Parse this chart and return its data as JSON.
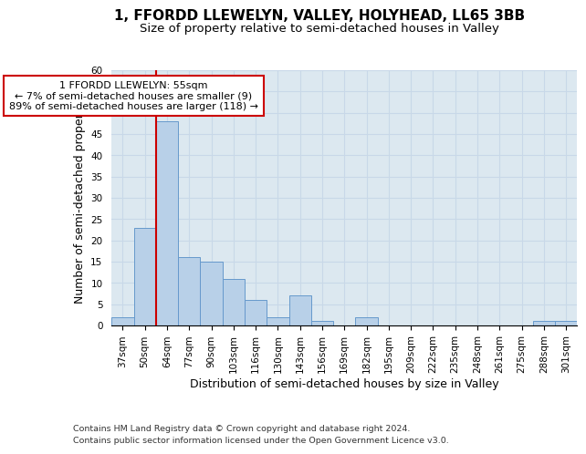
{
  "title1": "1, FFORDD LLEWELYN, VALLEY, HOLYHEAD, LL65 3BB",
  "title2": "Size of property relative to semi-detached houses in Valley",
  "xlabel": "Distribution of semi-detached houses by size in Valley",
  "ylabel": "Number of semi-detached properties",
  "categories": [
    "37sqm",
    "50sqm",
    "64sqm",
    "77sqm",
    "90sqm",
    "103sqm",
    "116sqm",
    "130sqm",
    "143sqm",
    "156sqm",
    "169sqm",
    "182sqm",
    "195sqm",
    "209sqm",
    "222sqm",
    "235sqm",
    "248sqm",
    "261sqm",
    "275sqm",
    "288sqm",
    "301sqm"
  ],
  "values": [
    2,
    23,
    48,
    16,
    15,
    11,
    6,
    2,
    7,
    1,
    0,
    2,
    0,
    0,
    0,
    0,
    0,
    0,
    0,
    1,
    1
  ],
  "bar_color": "#b8d0e8",
  "bar_edge_color": "#6699cc",
  "vline_color": "#cc0000",
  "annotation_text": "1 FFORDD LLEWELYN: 55sqm\n← 7% of semi-detached houses are smaller (9)\n89% of semi-detached houses are larger (118) →",
  "annotation_box_color": "#cc0000",
  "ylim": [
    0,
    60
  ],
  "yticks": [
    0,
    5,
    10,
    15,
    20,
    25,
    30,
    35,
    40,
    45,
    50,
    55,
    60
  ],
  "grid_color": "#c8d8e8",
  "background_color": "#dce8f0",
  "footer1": "Contains HM Land Registry data © Crown copyright and database right 2024.",
  "footer2": "Contains public sector information licensed under the Open Government Licence v3.0.",
  "title_fontsize": 11,
  "subtitle_fontsize": 9.5,
  "axis_label_fontsize": 9,
  "tick_fontsize": 7.5,
  "footer_fontsize": 6.8
}
